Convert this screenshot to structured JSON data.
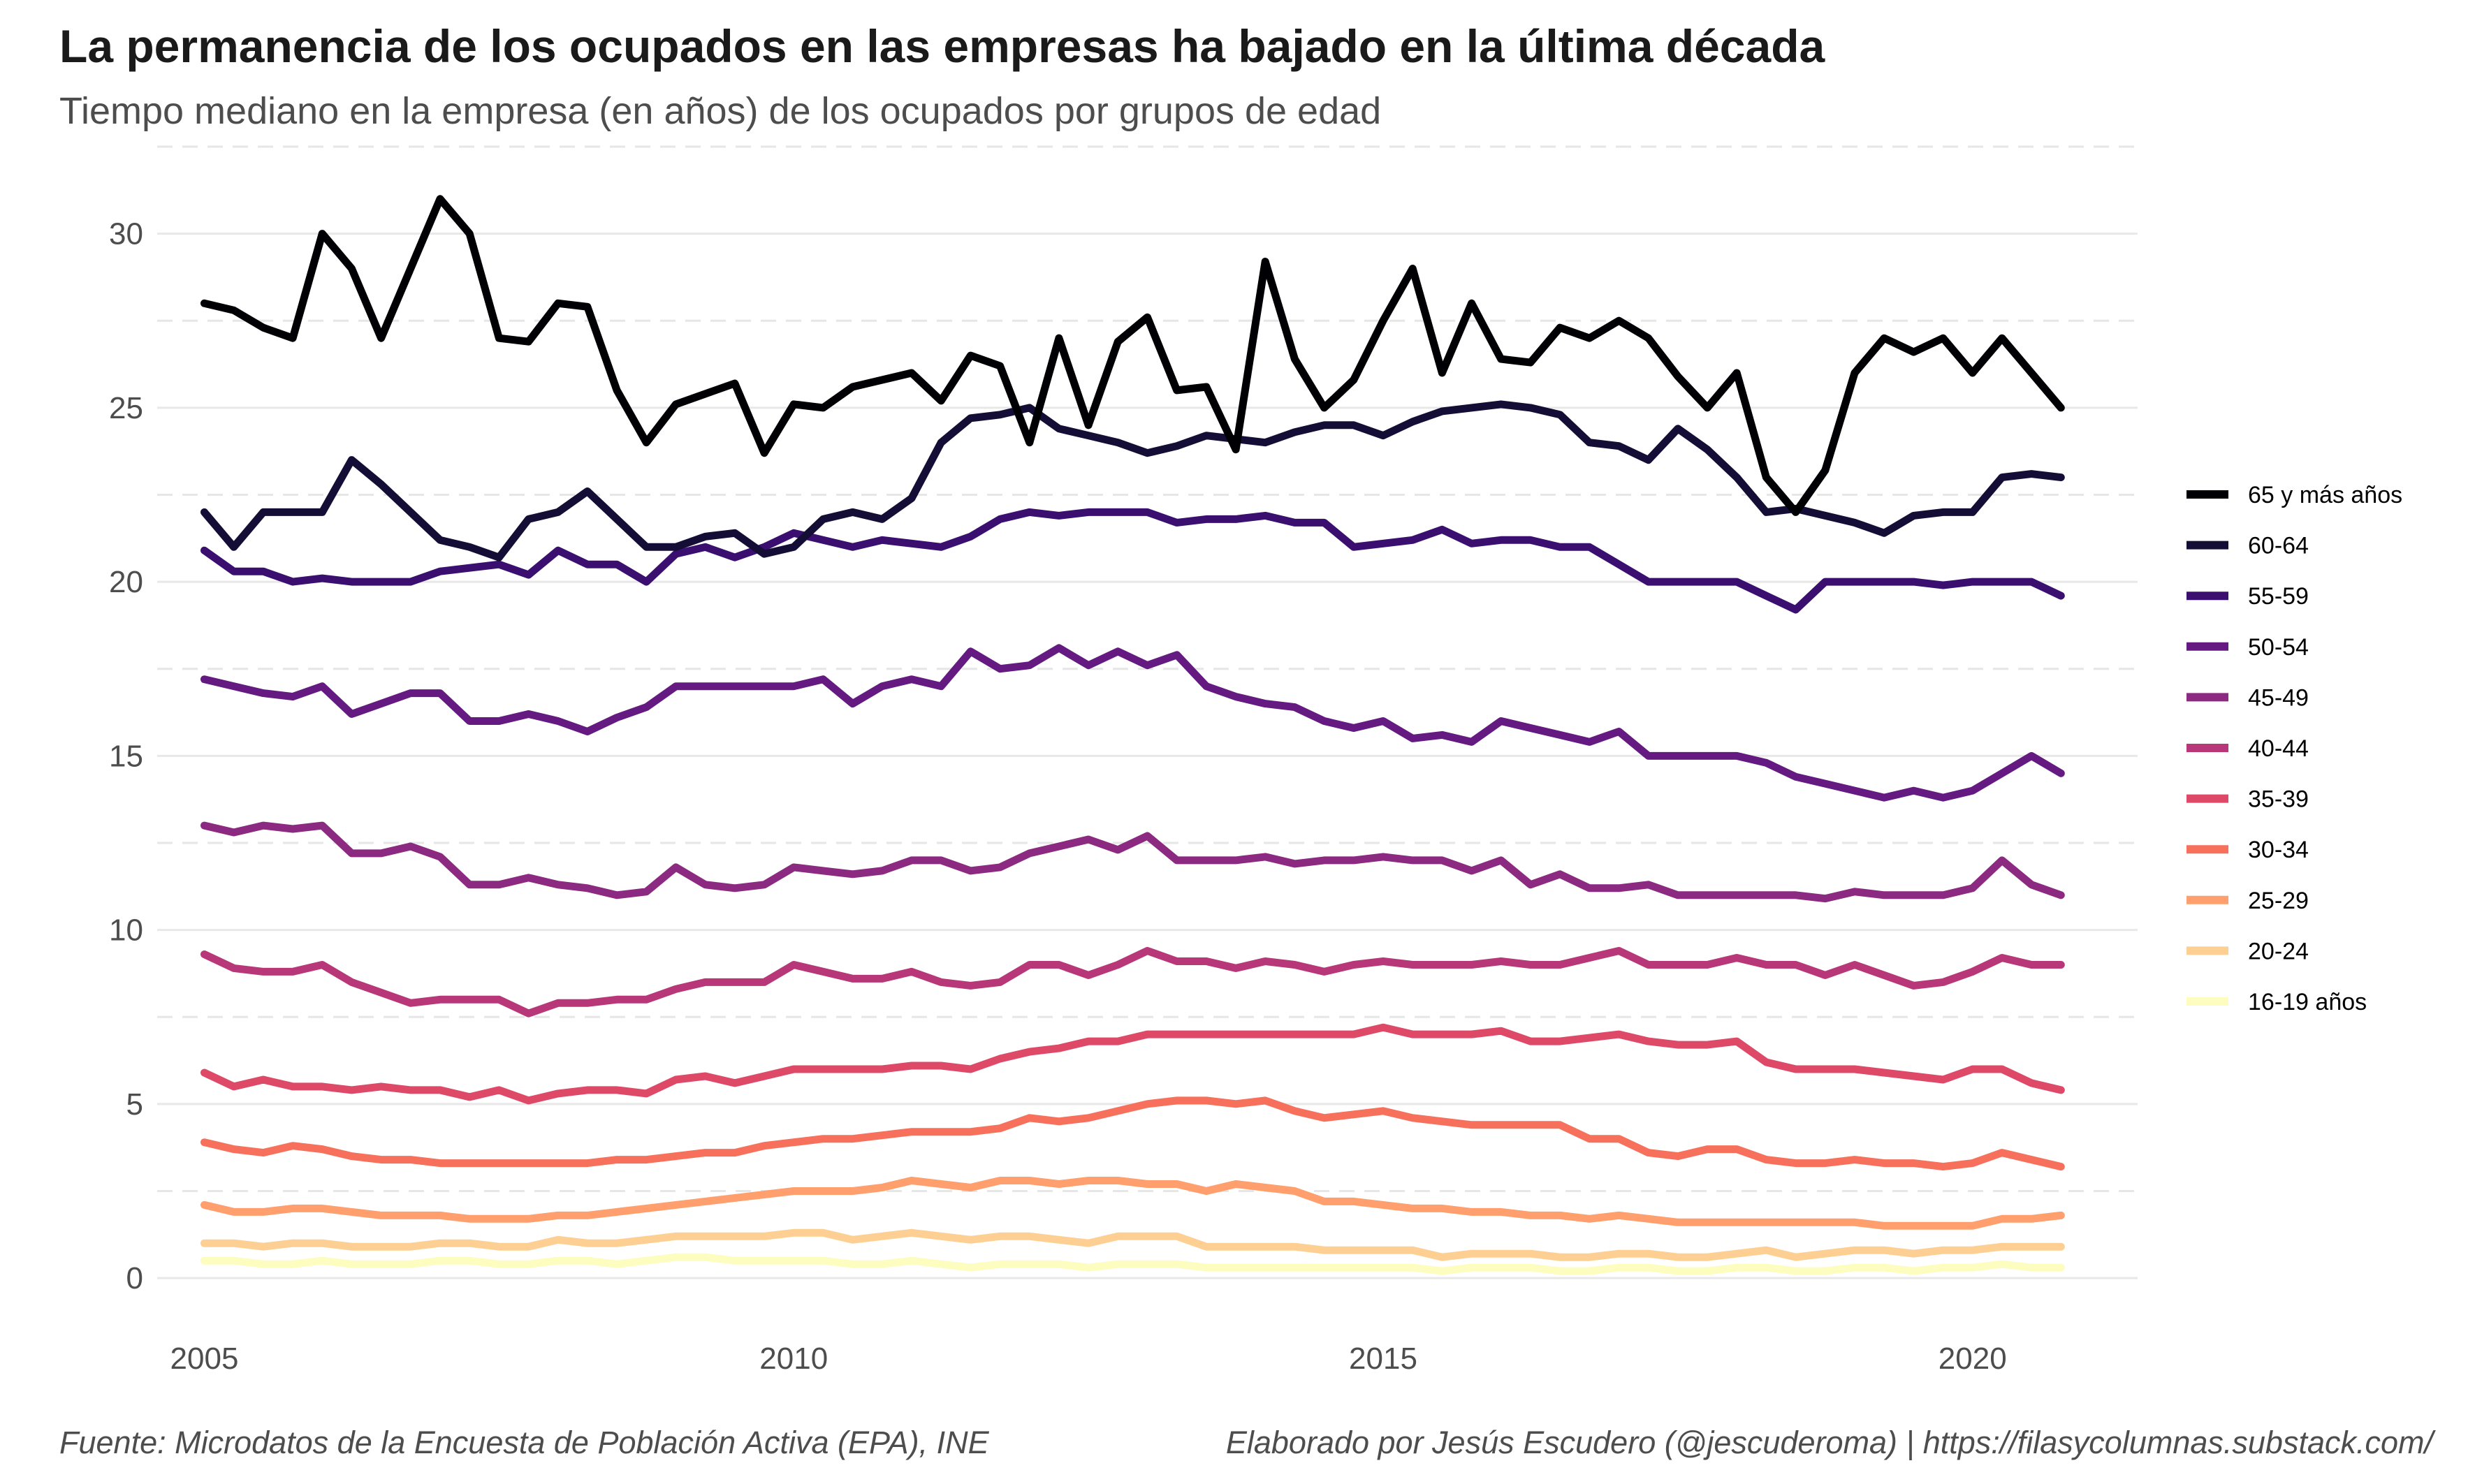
{
  "header": {
    "title": "La permanencia de los ocupados en las empresas ha bajado en la última década",
    "subtitle": "Tiempo mediano en la empresa (en años) de los ocupados por grupos de edad"
  },
  "footer": {
    "source": "Fuente: Microdatos de la Encuesta de Población Activa (EPA), INE",
    "credit": "Elaborado por Jesús Escudero (@jescuderoma) | https://filasycolumnas.substack.com/"
  },
  "chart_data": {
    "type": "line",
    "title": "La permanencia de los ocupados en las empresas ha bajado en la última década",
    "subtitle": "Tiempo mediano en la empresa (en años) de los ocupados por grupos de edad",
    "xlabel": "",
    "ylabel": "",
    "xlim": [
      2004.6,
      2021.4
    ],
    "ylim": [
      -0.6,
      32.5
    ],
    "x_ticks": [
      2005,
      2010,
      2015,
      2020
    ],
    "y_ticks": [
      0,
      5,
      10,
      15,
      20,
      25,
      30
    ],
    "grid": true,
    "legend_position": "right",
    "x": [
      2005.0,
      2005.25,
      2005.5,
      2005.75,
      2006.0,
      2006.25,
      2006.5,
      2006.75,
      2007.0,
      2007.25,
      2007.5,
      2007.75,
      2008.0,
      2008.25,
      2008.5,
      2008.75,
      2009.0,
      2009.25,
      2009.5,
      2009.75,
      2010.0,
      2010.25,
      2010.5,
      2010.75,
      2011.0,
      2011.25,
      2011.5,
      2011.75,
      2012.0,
      2012.25,
      2012.5,
      2012.75,
      2013.0,
      2013.25,
      2013.5,
      2013.75,
      2014.0,
      2014.25,
      2014.5,
      2014.75,
      2015.0,
      2015.25,
      2015.5,
      2015.75,
      2016.0,
      2016.25,
      2016.5,
      2016.75,
      2017.0,
      2017.25,
      2017.5,
      2017.75,
      2018.0,
      2018.25,
      2018.5,
      2018.75,
      2019.0,
      2019.25,
      2019.5,
      2019.75,
      2020.0,
      2020.25,
      2020.5,
      2020.75
    ],
    "series": [
      {
        "name": "65 y más años",
        "color": "#000004",
        "values": [
          28,
          27.8,
          27.3,
          27,
          30,
          29,
          27,
          29,
          31,
          30,
          27,
          26.9,
          28,
          27.9,
          25.5,
          24,
          25.1,
          25.4,
          25.7,
          23.7,
          25.1,
          25,
          25.6,
          25.8,
          26,
          25.2,
          26.5,
          26.2,
          24,
          27,
          24.5,
          26.9,
          27.6,
          25.5,
          25.6,
          23.8,
          29.2,
          26.4,
          25,
          25.8,
          27.5,
          29,
          26,
          28,
          26.4,
          26.3,
          27.3,
          27,
          27.5,
          27,
          25.9,
          25,
          26,
          23,
          22,
          23.2,
          26,
          27,
          26.6,
          27,
          26,
          27,
          26,
          25
        ]
      },
      {
        "name": "60-64",
        "color": "#140E36",
        "values": [
          22,
          21,
          22,
          22,
          22,
          23.5,
          22.8,
          22,
          21.2,
          21,
          20.7,
          21.8,
          22,
          22.6,
          21.8,
          21,
          21,
          21.3,
          21.4,
          20.8,
          21,
          21.8,
          22,
          21.8,
          22.4,
          24,
          24.7,
          24.8,
          25,
          24.4,
          24.2,
          24,
          23.7,
          23.9,
          24.2,
          24.1,
          24,
          24.3,
          24.5,
          24.5,
          24.2,
          24.6,
          24.9,
          25,
          25.1,
          25,
          24.8,
          24,
          23.9,
          23.5,
          24.4,
          23.8,
          23,
          22,
          22.1,
          21.9,
          21.7,
          21.4,
          21.9,
          22,
          22,
          23,
          23.1,
          23
        ]
      },
      {
        "name": "55-59",
        "color": "#3B0F70",
        "values": [
          20.9,
          20.3,
          20.3,
          20,
          20.1,
          20,
          20,
          20,
          20.3,
          20.4,
          20.5,
          20.2,
          20.9,
          20.5,
          20.5,
          20,
          20.8,
          21,
          20.7,
          21,
          21.4,
          21.2,
          21,
          21.2,
          21.1,
          21,
          21.3,
          21.8,
          22,
          21.9,
          22,
          22,
          22,
          21.7,
          21.8,
          21.8,
          21.9,
          21.7,
          21.7,
          21,
          21.1,
          21.2,
          21.5,
          21.1,
          21.2,
          21.2,
          21,
          21,
          20.5,
          20,
          20,
          20,
          20,
          19.6,
          19.2,
          20,
          20,
          20,
          20,
          19.9,
          20,
          20,
          20,
          19.6
        ]
      },
      {
        "name": "50-54",
        "color": "#641A80",
        "values": [
          17.2,
          17,
          16.8,
          16.7,
          17,
          16.2,
          16.5,
          16.8,
          16.8,
          16,
          16,
          16.2,
          16,
          15.7,
          16.1,
          16.4,
          17,
          17,
          17,
          17,
          17,
          17.2,
          16.5,
          17,
          17.2,
          17,
          18,
          17.5,
          17.6,
          18.1,
          17.6,
          18,
          17.6,
          17.9,
          17,
          16.7,
          16.5,
          16.4,
          16,
          15.8,
          16,
          15.5,
          15.6,
          15.4,
          16,
          15.8,
          15.6,
          15.4,
          15.7,
          15,
          15,
          15,
          15,
          14.8,
          14.4,
          14.2,
          14,
          13.8,
          14,
          13.8,
          14,
          14.5,
          15,
          14.5
        ]
      },
      {
        "name": "45-49",
        "color": "#8C2981",
        "values": [
          13,
          12.8,
          13,
          12.9,
          13,
          12.2,
          12.2,
          12.4,
          12.1,
          11.3,
          11.3,
          11.5,
          11.3,
          11.2,
          11,
          11.1,
          11.8,
          11.3,
          11.2,
          11.3,
          11.8,
          11.7,
          11.6,
          11.7,
          12,
          12,
          11.7,
          11.8,
          12.2,
          12.4,
          12.6,
          12.3,
          12.7,
          12,
          12,
          12,
          12.1,
          11.9,
          12,
          12,
          12.1,
          12,
          12,
          11.7,
          12,
          11.3,
          11.6,
          11.2,
          11.2,
          11.3,
          11,
          11,
          11,
          11,
          11,
          10.9,
          11.1,
          11,
          11,
          11,
          11.2,
          12,
          11.3,
          11
        ]
      },
      {
        "name": "40-44",
        "color": "#B73779",
        "values": [
          9.3,
          8.9,
          8.8,
          8.8,
          9,
          8.5,
          8.2,
          7.9,
          8,
          8,
          8,
          7.6,
          7.9,
          7.9,
          8,
          8,
          8.3,
          8.5,
          8.5,
          8.5,
          9,
          8.8,
          8.6,
          8.6,
          8.8,
          8.5,
          8.4,
          8.5,
          9,
          9,
          8.7,
          9,
          9.4,
          9.1,
          9.1,
          8.9,
          9.1,
          9,
          8.8,
          9,
          9.1,
          9,
          9,
          9,
          9.1,
          9,
          9,
          9.2,
          9.4,
          9,
          9,
          9,
          9.2,
          9,
          9,
          8.7,
          9,
          8.7,
          8.4,
          8.5,
          8.8,
          9.2,
          9,
          9
        ]
      },
      {
        "name": "35-39",
        "color": "#DE4968",
        "values": [
          5.9,
          5.5,
          5.7,
          5.5,
          5.5,
          5.4,
          5.5,
          5.4,
          5.4,
          5.2,
          5.4,
          5.1,
          5.3,
          5.4,
          5.4,
          5.3,
          5.7,
          5.8,
          5.6,
          5.8,
          6,
          6,
          6,
          6,
          6.1,
          6.1,
          6,
          6.3,
          6.5,
          6.6,
          6.8,
          6.8,
          7,
          7,
          7,
          7,
          7,
          7,
          7,
          7,
          7.2,
          7,
          7,
          7,
          7.1,
          6.8,
          6.8,
          6.9,
          7,
          6.8,
          6.7,
          6.7,
          6.8,
          6.2,
          6,
          6,
          6,
          5.9,
          5.8,
          5.7,
          6,
          6,
          5.6,
          5.4
        ]
      },
      {
        "name": "30-34",
        "color": "#F7705C",
        "values": [
          3.9,
          3.7,
          3.6,
          3.8,
          3.7,
          3.5,
          3.4,
          3.4,
          3.3,
          3.3,
          3.3,
          3.3,
          3.3,
          3.3,
          3.4,
          3.4,
          3.5,
          3.6,
          3.6,
          3.8,
          3.9,
          4,
          4,
          4.1,
          4.2,
          4.2,
          4.2,
          4.3,
          4.6,
          4.5,
          4.6,
          4.8,
          5,
          5.1,
          5.1,
          5,
          5.1,
          4.8,
          4.6,
          4.7,
          4.8,
          4.6,
          4.5,
          4.4,
          4.4,
          4.4,
          4.4,
          4,
          4,
          3.6,
          3.5,
          3.7,
          3.7,
          3.4,
          3.3,
          3.3,
          3.4,
          3.3,
          3.3,
          3.2,
          3.3,
          3.6,
          3.4,
          3.2
        ]
      },
      {
        "name": "25-29",
        "color": "#FE9F6D",
        "values": [
          2.1,
          1.9,
          1.9,
          2,
          2,
          1.9,
          1.8,
          1.8,
          1.8,
          1.7,
          1.7,
          1.7,
          1.8,
          1.8,
          1.9,
          2,
          2.1,
          2.2,
          2.3,
          2.4,
          2.5,
          2.5,
          2.5,
          2.6,
          2.8,
          2.7,
          2.6,
          2.8,
          2.8,
          2.7,
          2.8,
          2.8,
          2.7,
          2.7,
          2.5,
          2.7,
          2.6,
          2.5,
          2.2,
          2.2,
          2.1,
          2,
          2,
          1.9,
          1.9,
          1.8,
          1.8,
          1.7,
          1.8,
          1.7,
          1.6,
          1.6,
          1.6,
          1.6,
          1.6,
          1.6,
          1.6,
          1.5,
          1.5,
          1.5,
          1.5,
          1.7,
          1.7,
          1.8
        ]
      },
      {
        "name": "20-24",
        "color": "#FECF92",
        "values": [
          1,
          1,
          0.9,
          1,
          1,
          0.9,
          0.9,
          0.9,
          1,
          1,
          0.9,
          0.9,
          1.1,
          1,
          1,
          1.1,
          1.2,
          1.2,
          1.2,
          1.2,
          1.3,
          1.3,
          1.1,
          1.2,
          1.3,
          1.2,
          1.1,
          1.2,
          1.2,
          1.1,
          1,
          1.2,
          1.2,
          1.2,
          0.9,
          0.9,
          0.9,
          0.9,
          0.8,
          0.8,
          0.8,
          0.8,
          0.6,
          0.7,
          0.7,
          0.7,
          0.6,
          0.6,
          0.7,
          0.7,
          0.6,
          0.6,
          0.7,
          0.8,
          0.6,
          0.7,
          0.8,
          0.8,
          0.7,
          0.8,
          0.8,
          0.9,
          0.9,
          0.9
        ]
      },
      {
        "name": "16-19 años",
        "color": "#FCFDBF",
        "values": [
          0.5,
          0.5,
          0.4,
          0.4,
          0.5,
          0.4,
          0.4,
          0.4,
          0.5,
          0.5,
          0.4,
          0.4,
          0.5,
          0.5,
          0.4,
          0.5,
          0.6,
          0.6,
          0.5,
          0.5,
          0.5,
          0.5,
          0.4,
          0.4,
          0.5,
          0.4,
          0.3,
          0.4,
          0.4,
          0.4,
          0.3,
          0.4,
          0.4,
          0.4,
          0.3,
          0.3,
          0.3,
          0.3,
          0.3,
          0.3,
          0.3,
          0.3,
          0.2,
          0.3,
          0.3,
          0.3,
          0.2,
          0.2,
          0.3,
          0.3,
          0.2,
          0.2,
          0.3,
          0.3,
          0.2,
          0.2,
          0.3,
          0.3,
          0.2,
          0.3,
          0.3,
          0.4,
          0.3,
          0.3
        ]
      }
    ]
  }
}
